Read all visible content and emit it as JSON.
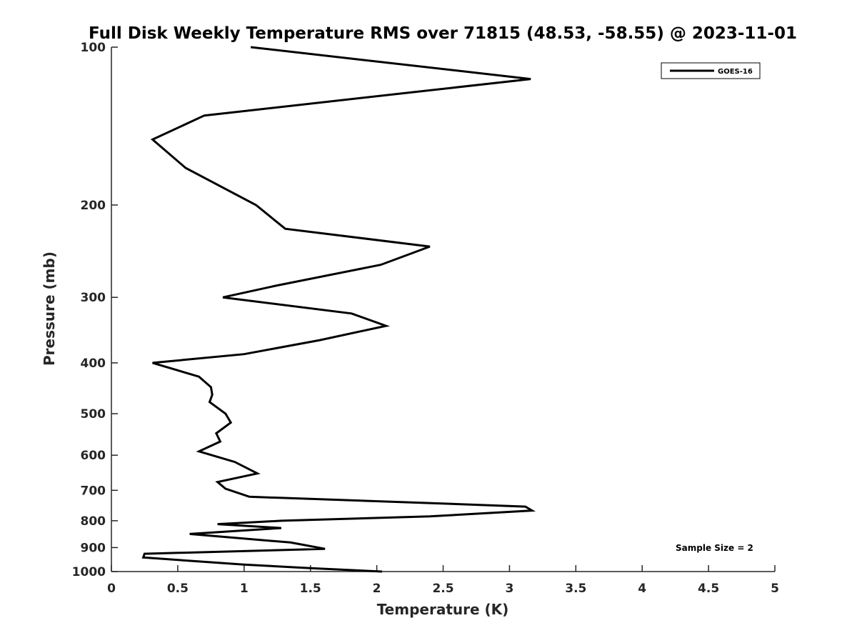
{
  "chart_data": {
    "type": "line",
    "title": "Full Disk Weekly Temperature RMS over 71815 (48.53, -58.55) @ 2023-11-01",
    "xlabel": "Temperature (K)",
    "ylabel": "Pressure (mb)",
    "xlim": [
      0,
      5
    ],
    "ylim": [
      1000,
      100
    ],
    "yscale": "log",
    "xticks": [
      "0",
      "0.5",
      "1",
      "1.5",
      "2",
      "2.5",
      "3",
      "3.5",
      "4",
      "4.5",
      "5"
    ],
    "yticks": [
      "100",
      "200",
      "300",
      "400",
      "500",
      "600",
      "700",
      "800",
      "900",
      "1000"
    ],
    "grid": false,
    "legend_position": "top-right",
    "annotation": "Sample Size = 2",
    "series": [
      {
        "name": "GOES-16",
        "color": "#000000",
        "points": [
          [
            1.05,
            100
          ],
          [
            3.16,
            115
          ],
          [
            0.7,
            135
          ],
          [
            0.31,
            150
          ],
          [
            0.56,
            170
          ],
          [
            1.09,
            200
          ],
          [
            1.31,
            222
          ],
          [
            2.4,
            240
          ],
          [
            2.03,
            260
          ],
          [
            1.24,
            285
          ],
          [
            0.84,
            300
          ],
          [
            1.81,
            322
          ],
          [
            2.07,
            340
          ],
          [
            1.57,
            362
          ],
          [
            1.0,
            385
          ],
          [
            0.31,
            400
          ],
          [
            0.66,
            425
          ],
          [
            0.75,
            445
          ],
          [
            0.76,
            460
          ],
          [
            0.74,
            475
          ],
          [
            0.86,
            500
          ],
          [
            0.9,
            520
          ],
          [
            0.79,
            545
          ],
          [
            0.82,
            565
          ],
          [
            0.66,
            590
          ],
          [
            0.93,
            618
          ],
          [
            1.1,
            650
          ],
          [
            0.8,
            675
          ],
          [
            0.86,
            695
          ],
          [
            1.04,
            720
          ],
          [
            2.26,
            738
          ],
          [
            3.12,
            752
          ],
          [
            3.17,
            765
          ],
          [
            2.4,
            785
          ],
          [
            1.28,
            800
          ],
          [
            0.8,
            812
          ],
          [
            1.28,
            826
          ],
          [
            0.59,
            848
          ],
          [
            1.35,
            880
          ],
          [
            1.61,
            905
          ],
          [
            0.25,
            925
          ],
          [
            0.24,
            940
          ],
          [
            1.0,
            970
          ],
          [
            1.5,
            985
          ],
          [
            2.04,
            1000
          ]
        ]
      }
    ]
  }
}
